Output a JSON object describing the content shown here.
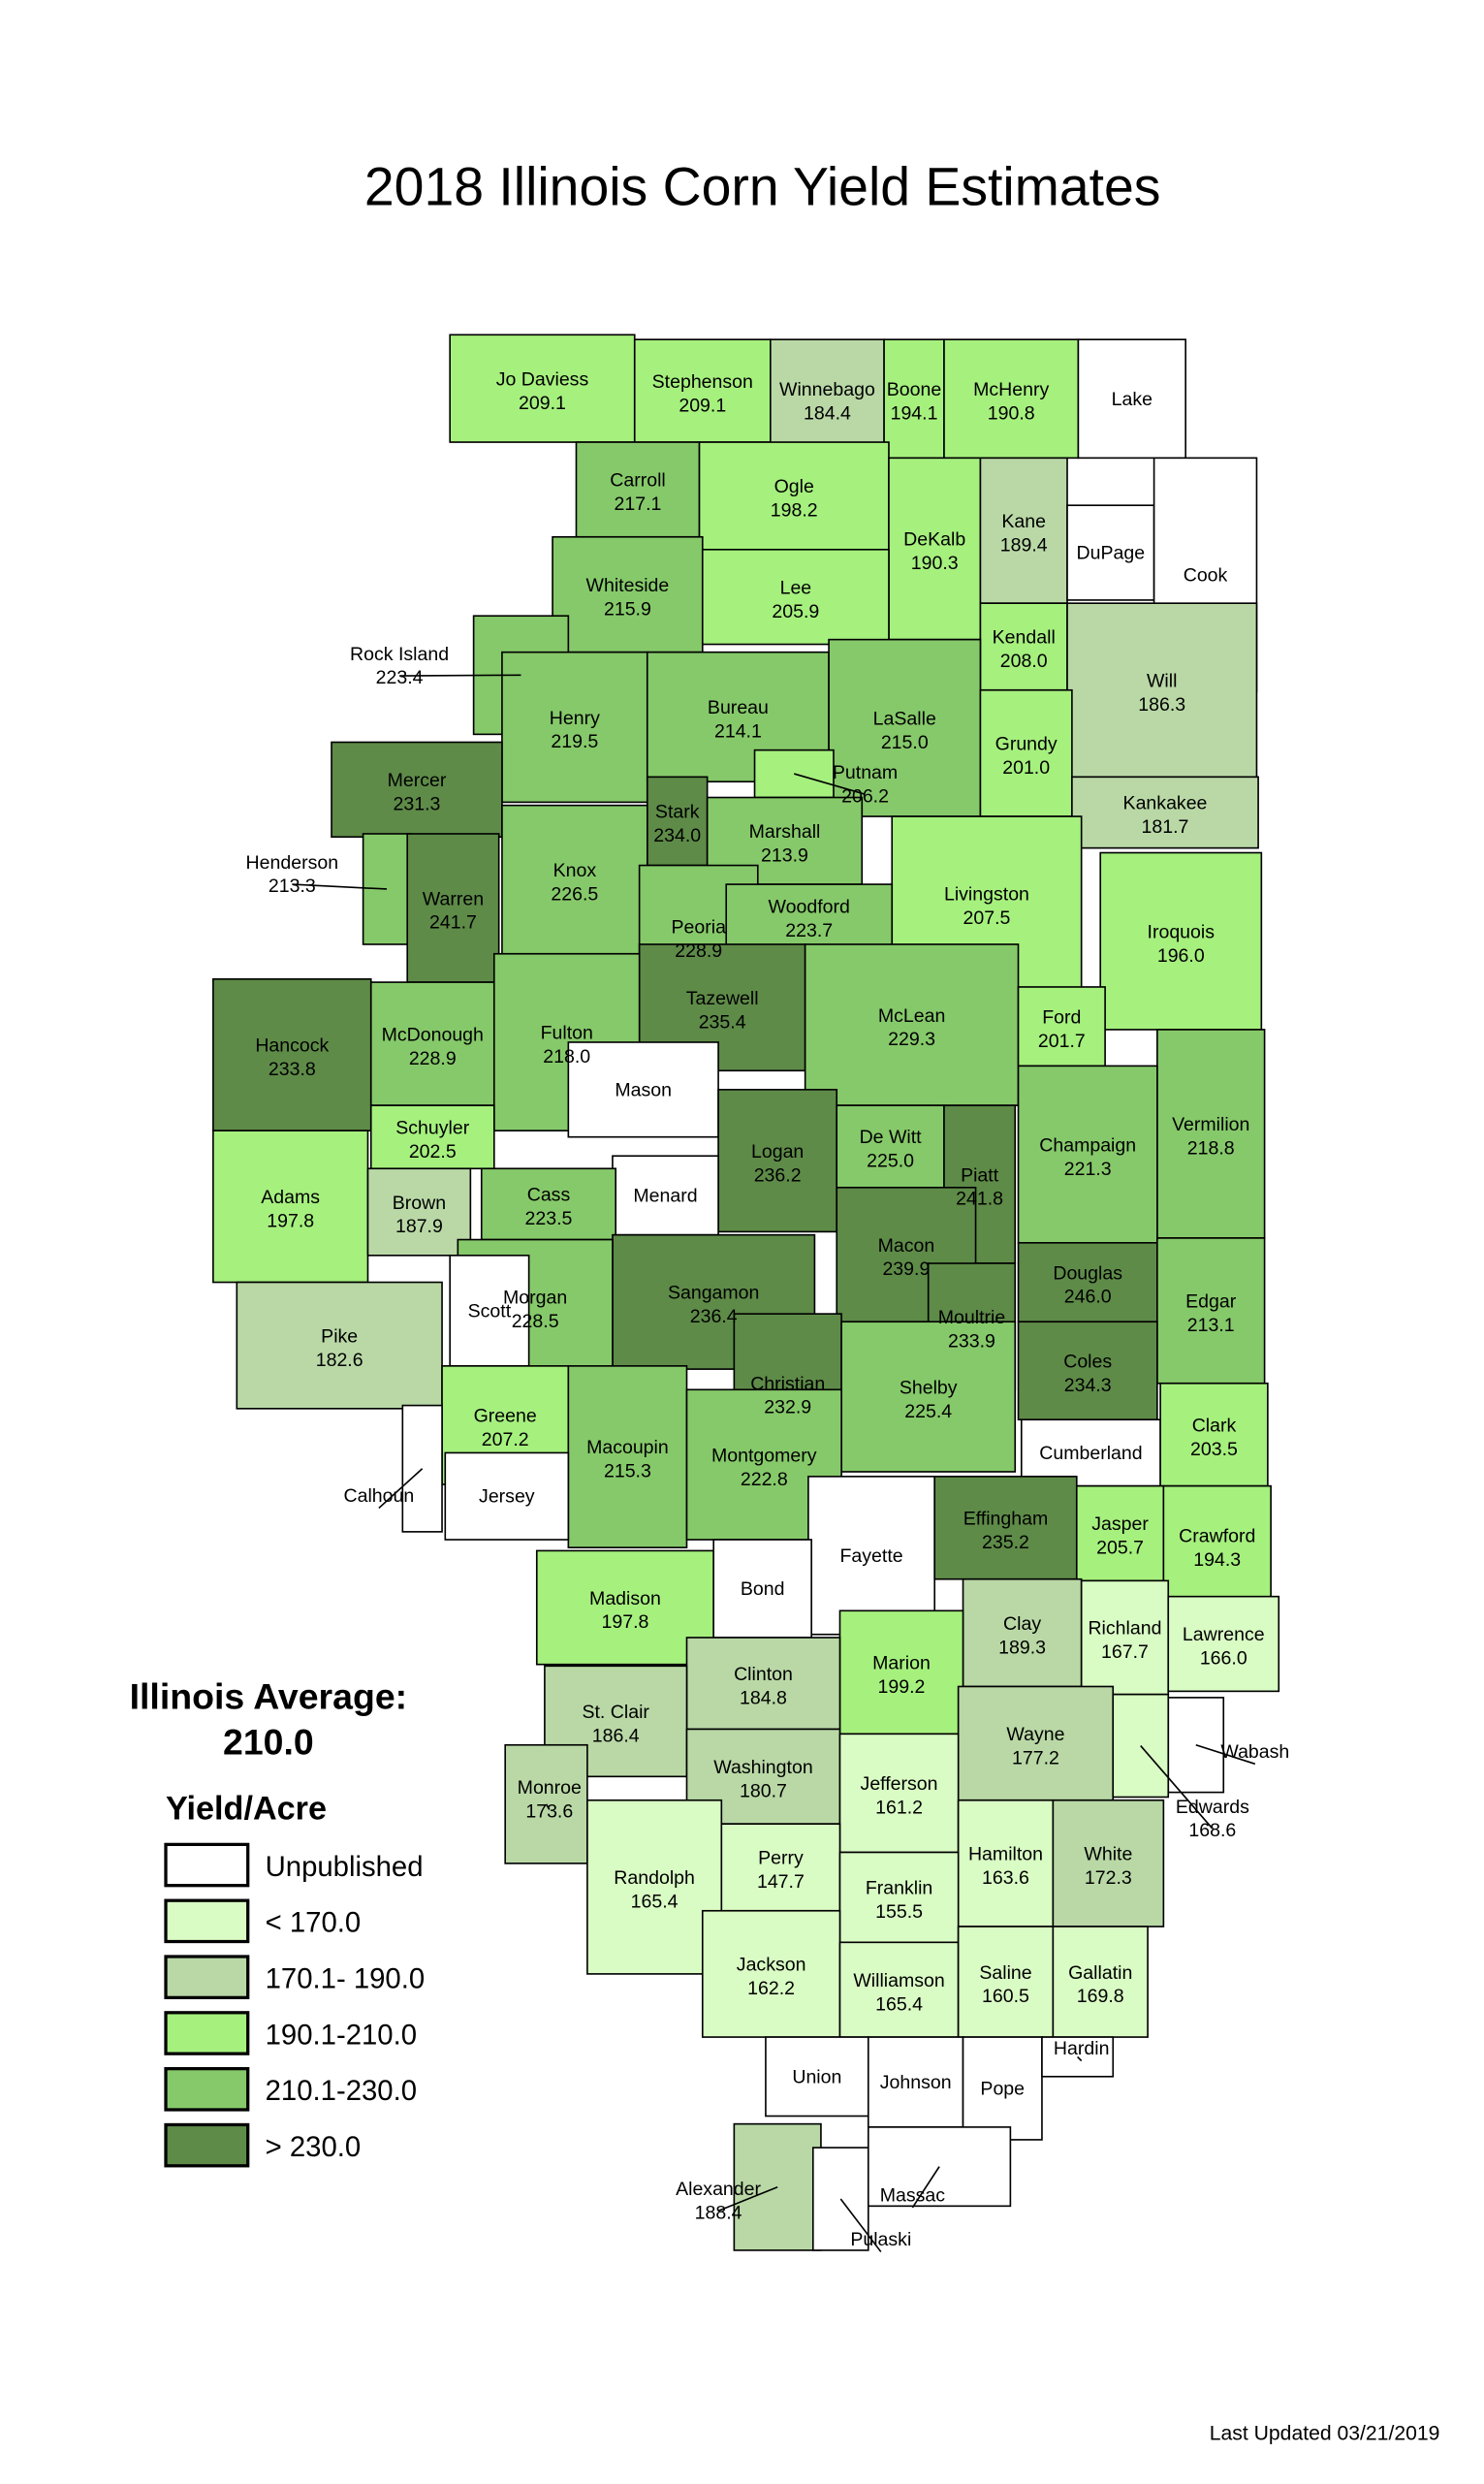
{
  "title": "2018 Illinois Corn Yield Estimates",
  "average_label": "Illinois Average:",
  "average_value": "210.0",
  "legend": {
    "title": "Yield/Acre",
    "items": [
      {
        "label": "Unpublished",
        "color": "#ffffff"
      },
      {
        "label": "< 170.0",
        "color": "#d9fbc4"
      },
      {
        "label": "170.1- 190.0",
        "color": "#b9d8a6"
      },
      {
        "label": "190.1-210.0",
        "color": "#a6f07e"
      },
      {
        "label": "210.1-230.0",
        "color": "#86c96a"
      },
      {
        "label": "> 230.0",
        "color": "#5e8b48"
      }
    ]
  },
  "footer": "Last Updated 03/21/2019",
  "counties": [
    {
      "name": "Jo Daviess",
      "value": "209.1",
      "color": "#a6f07e"
    },
    {
      "name": "Stephenson",
      "value": "209.1",
      "color": "#a6f07e"
    },
    {
      "name": "Winnebago",
      "value": "184.4",
      "color": "#b9d8a6"
    },
    {
      "name": "Boone",
      "value": "194.1",
      "color": "#a6f07e"
    },
    {
      "name": "McHenry",
      "value": "190.8",
      "color": "#a6f07e"
    },
    {
      "name": "Lake",
      "value": null,
      "color": "#ffffff"
    },
    {
      "name": "Carroll",
      "value": "217.1",
      "color": "#86c96a"
    },
    {
      "name": "Ogle",
      "value": "198.2",
      "color": "#a6f07e"
    },
    {
      "name": "DeKalb",
      "value": "190.3",
      "color": "#a6f07e"
    },
    {
      "name": "Kane",
      "value": "189.4",
      "color": "#b9d8a6"
    },
    {
      "name": "DuPage",
      "value": null,
      "color": "#ffffff"
    },
    {
      "name": "Cook",
      "value": null,
      "color": "#ffffff"
    },
    {
      "name": "Whiteside",
      "value": "215.9",
      "color": "#86c96a"
    },
    {
      "name": "Lee",
      "value": "205.9",
      "color": "#a6f07e"
    },
    {
      "name": "Rock Island",
      "value": "223.4",
      "color": "#86c96a"
    },
    {
      "name": "Kendall",
      "value": "208.0",
      "color": "#a6f07e"
    },
    {
      "name": "Will",
      "value": "186.3",
      "color": "#b9d8a6"
    },
    {
      "name": "Henry",
      "value": "219.5",
      "color": "#86c96a"
    },
    {
      "name": "Bureau",
      "value": "214.1",
      "color": "#86c96a"
    },
    {
      "name": "LaSalle",
      "value": "215.0",
      "color": "#86c96a"
    },
    {
      "name": "Grundy",
      "value": "201.0",
      "color": "#a6f07e"
    },
    {
      "name": "Kankakee",
      "value": "181.7",
      "color": "#b9d8a6"
    },
    {
      "name": "Mercer",
      "value": "231.3",
      "color": "#5e8b48"
    },
    {
      "name": "Putnam",
      "value": "206.2",
      "color": "#a6f07e"
    },
    {
      "name": "Stark",
      "value": "234.0",
      "color": "#5e8b48"
    },
    {
      "name": "Marshall",
      "value": "213.9",
      "color": "#86c96a"
    },
    {
      "name": "Henderson",
      "value": "213.3",
      "color": "#86c96a"
    },
    {
      "name": "Warren",
      "value": "241.7",
      "color": "#5e8b48"
    },
    {
      "name": "Knox",
      "value": "226.5",
      "color": "#86c96a"
    },
    {
      "name": "Livingston",
      "value": "207.5",
      "color": "#a6f07e"
    },
    {
      "name": "Peoria",
      "value": "228.9",
      "color": "#86c96a"
    },
    {
      "name": "Woodford",
      "value": "223.7",
      "color": "#86c96a"
    },
    {
      "name": "Iroquois",
      "value": "196.0",
      "color": "#a6f07e"
    },
    {
      "name": "Tazewell",
      "value": "235.4",
      "color": "#5e8b48"
    },
    {
      "name": "McLean",
      "value": "229.3",
      "color": "#86c96a"
    },
    {
      "name": "Ford",
      "value": "201.7",
      "color": "#a6f07e"
    },
    {
      "name": "Hancock",
      "value": "233.8",
      "color": "#5e8b48"
    },
    {
      "name": "McDonough",
      "value": "228.9",
      "color": "#86c96a"
    },
    {
      "name": "Fulton",
      "value": "218.0",
      "color": "#86c96a"
    },
    {
      "name": "Mason",
      "value": null,
      "color": "#ffffff"
    },
    {
      "name": "Vermilion",
      "value": "218.8",
      "color": "#86c96a"
    },
    {
      "name": "Champaign",
      "value": "221.3",
      "color": "#86c96a"
    },
    {
      "name": "Schuyler",
      "value": "202.5",
      "color": "#a6f07e"
    },
    {
      "name": "Logan",
      "value": "236.2",
      "color": "#5e8b48"
    },
    {
      "name": "De Witt",
      "value": "225.0",
      "color": "#86c96a"
    },
    {
      "name": "Piatt",
      "value": "241.8",
      "color": "#5e8b48"
    },
    {
      "name": "Adams",
      "value": "197.8",
      "color": "#a6f07e"
    },
    {
      "name": "Menard",
      "value": null,
      "color": "#ffffff"
    },
    {
      "name": "Brown",
      "value": "187.9",
      "color": "#b9d8a6"
    },
    {
      "name": "Cass",
      "value": "223.5",
      "color": "#86c96a"
    },
    {
      "name": "Macon",
      "value": "239.9",
      "color": "#5e8b48"
    },
    {
      "name": "Sangamon",
      "value": "236.4",
      "color": "#5e8b48"
    },
    {
      "name": "Morgan",
      "value": "228.5",
      "color": "#86c96a"
    },
    {
      "name": "Douglas",
      "value": "246.0",
      "color": "#5e8b48"
    },
    {
      "name": "Edgar",
      "value": "213.1",
      "color": "#86c96a"
    },
    {
      "name": "Pike",
      "value": "182.6",
      "color": "#b9d8a6"
    },
    {
      "name": "Scott",
      "value": null,
      "color": "#ffffff"
    },
    {
      "name": "Moultrie",
      "value": "233.9",
      "color": "#5e8b48"
    },
    {
      "name": "Christian",
      "value": "232.9",
      "color": "#5e8b48"
    },
    {
      "name": "Coles",
      "value": "234.3",
      "color": "#5e8b48"
    },
    {
      "name": "Greene",
      "value": "207.2",
      "color": "#a6f07e"
    },
    {
      "name": "Macoupin",
      "value": "215.3",
      "color": "#86c96a"
    },
    {
      "name": "Shelby",
      "value": "225.4",
      "color": "#86c96a"
    },
    {
      "name": "Montgomery",
      "value": "222.8",
      "color": "#86c96a"
    },
    {
      "name": "Cumberland",
      "value": null,
      "color": "#ffffff"
    },
    {
      "name": "Clark",
      "value": "203.5",
      "color": "#a6f07e"
    },
    {
      "name": "Calhoun",
      "value": null,
      "color": "#ffffff"
    },
    {
      "name": "Jersey",
      "value": null,
      "color": "#ffffff"
    },
    {
      "name": "Fayette",
      "value": null,
      "color": "#ffffff"
    },
    {
      "name": "Effingham",
      "value": "235.2",
      "color": "#5e8b48"
    },
    {
      "name": "Jasper",
      "value": "205.7",
      "color": "#a6f07e"
    },
    {
      "name": "Crawford",
      "value": "194.3",
      "color": "#a6f07e"
    },
    {
      "name": "Madison",
      "value": "197.8",
      "color": "#a6f07e"
    },
    {
      "name": "Bond",
      "value": null,
      "color": "#ffffff"
    },
    {
      "name": "Clay",
      "value": "189.3",
      "color": "#b9d8a6"
    },
    {
      "name": "Richland",
      "value": "167.7",
      "color": "#d9fbc4"
    },
    {
      "name": "Lawrence",
      "value": "166.0",
      "color": "#d9fbc4"
    },
    {
      "name": "Marion",
      "value": "199.2",
      "color": "#a6f07e"
    },
    {
      "name": "Clinton",
      "value": "184.8",
      "color": "#b9d8a6"
    },
    {
      "name": "St. Clair",
      "value": "186.4",
      "color": "#b9d8a6"
    },
    {
      "name": "Wayne",
      "value": "177.2",
      "color": "#b9d8a6"
    },
    {
      "name": "Wabash",
      "value": null,
      "color": "#ffffff"
    },
    {
      "name": "Edwards",
      "value": "168.6",
      "color": "#d9fbc4"
    },
    {
      "name": "Washington",
      "value": "180.7",
      "color": "#b9d8a6"
    },
    {
      "name": "Monroe",
      "value": "173.6",
      "color": "#b9d8a6"
    },
    {
      "name": "Jefferson",
      "value": "161.2",
      "color": "#d9fbc4"
    },
    {
      "name": "Randolph",
      "value": "165.4",
      "color": "#d9fbc4"
    },
    {
      "name": "Perry",
      "value": "147.7",
      "color": "#d9fbc4"
    },
    {
      "name": "Hamilton",
      "value": "163.6",
      "color": "#d9fbc4"
    },
    {
      "name": "White",
      "value": "172.3",
      "color": "#b9d8a6"
    },
    {
      "name": "Franklin",
      "value": "155.5",
      "color": "#d9fbc4"
    },
    {
      "name": "Jackson",
      "value": "162.2",
      "color": "#d9fbc4"
    },
    {
      "name": "Williamson",
      "value": "165.4",
      "color": "#d9fbc4"
    },
    {
      "name": "Saline",
      "value": "160.5",
      "color": "#d9fbc4"
    },
    {
      "name": "Gallatin",
      "value": "169.8",
      "color": "#d9fbc4"
    },
    {
      "name": "Union",
      "value": null,
      "color": "#ffffff"
    },
    {
      "name": "Johnson",
      "value": null,
      "color": "#ffffff"
    },
    {
      "name": "Pope",
      "value": null,
      "color": "#ffffff"
    },
    {
      "name": "Hardin",
      "value": null,
      "color": "#ffffff"
    },
    {
      "name": "Alexander",
      "value": "188.4",
      "color": "#b9d8a6"
    },
    {
      "name": "Pulaski",
      "value": null,
      "color": "#ffffff"
    },
    {
      "name": "Massac",
      "value": null,
      "color": "#ffffff"
    }
  ]
}
